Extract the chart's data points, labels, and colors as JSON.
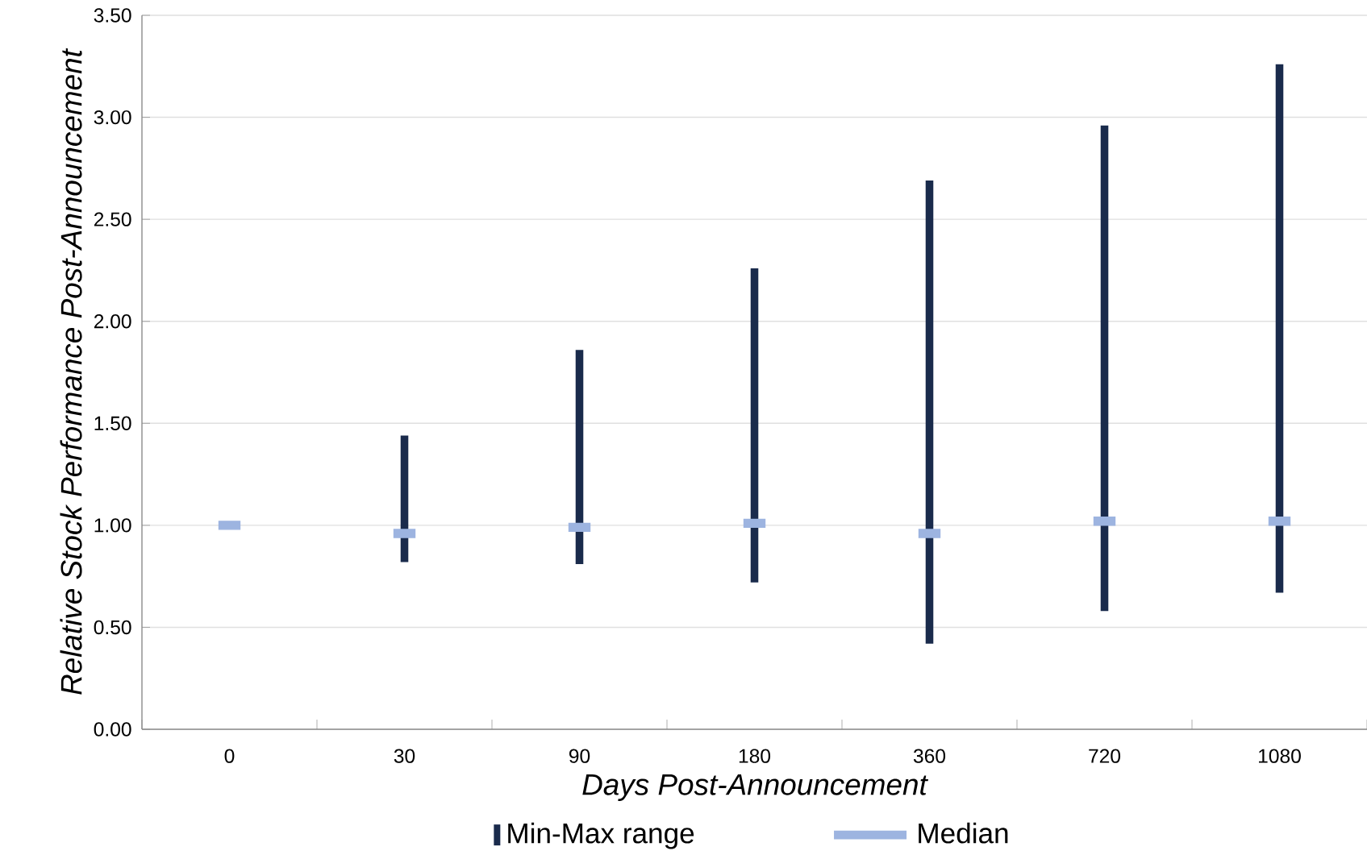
{
  "chart_data": {
    "type": "bar",
    "xlabel": "Days Post-Announcement",
    "ylabel": "Relative Stock Performance Post-Announcement",
    "categories": [
      "0",
      "30",
      "90",
      "180",
      "360",
      "720",
      "1080"
    ],
    "series": [
      {
        "name": "Min-Max range",
        "color": "#1a2b4c",
        "base": [
          null,
          0.82,
          0.81,
          0.72,
          0.42,
          0.58,
          0.67
        ],
        "values": [
          null,
          0.62,
          1.05,
          1.54,
          2.27,
          2.38,
          2.59
        ]
      },
      {
        "name": "Median",
        "type": "scatter",
        "color": "#9db4e0",
        "values": [
          1.0,
          0.96,
          0.99,
          1.01,
          0.96,
          1.02,
          1.02
        ]
      }
    ],
    "ylim": [
      0,
      3.5
    ],
    "yticks": [
      {
        "value": 0,
        "label": "0.00"
      },
      {
        "value": 0.5,
        "label": "0.50"
      },
      {
        "value": 1,
        "label": "1.00"
      },
      {
        "value": 1.5,
        "label": "1.50"
      },
      {
        "value": 2,
        "label": "2.00"
      },
      {
        "value": 2.5,
        "label": "2.50"
      },
      {
        "value": 3,
        "label": "3.00"
      },
      {
        "value": 3.5,
        "label": "3.50"
      }
    ],
    "grid": "y",
    "legend": "bottom"
  }
}
